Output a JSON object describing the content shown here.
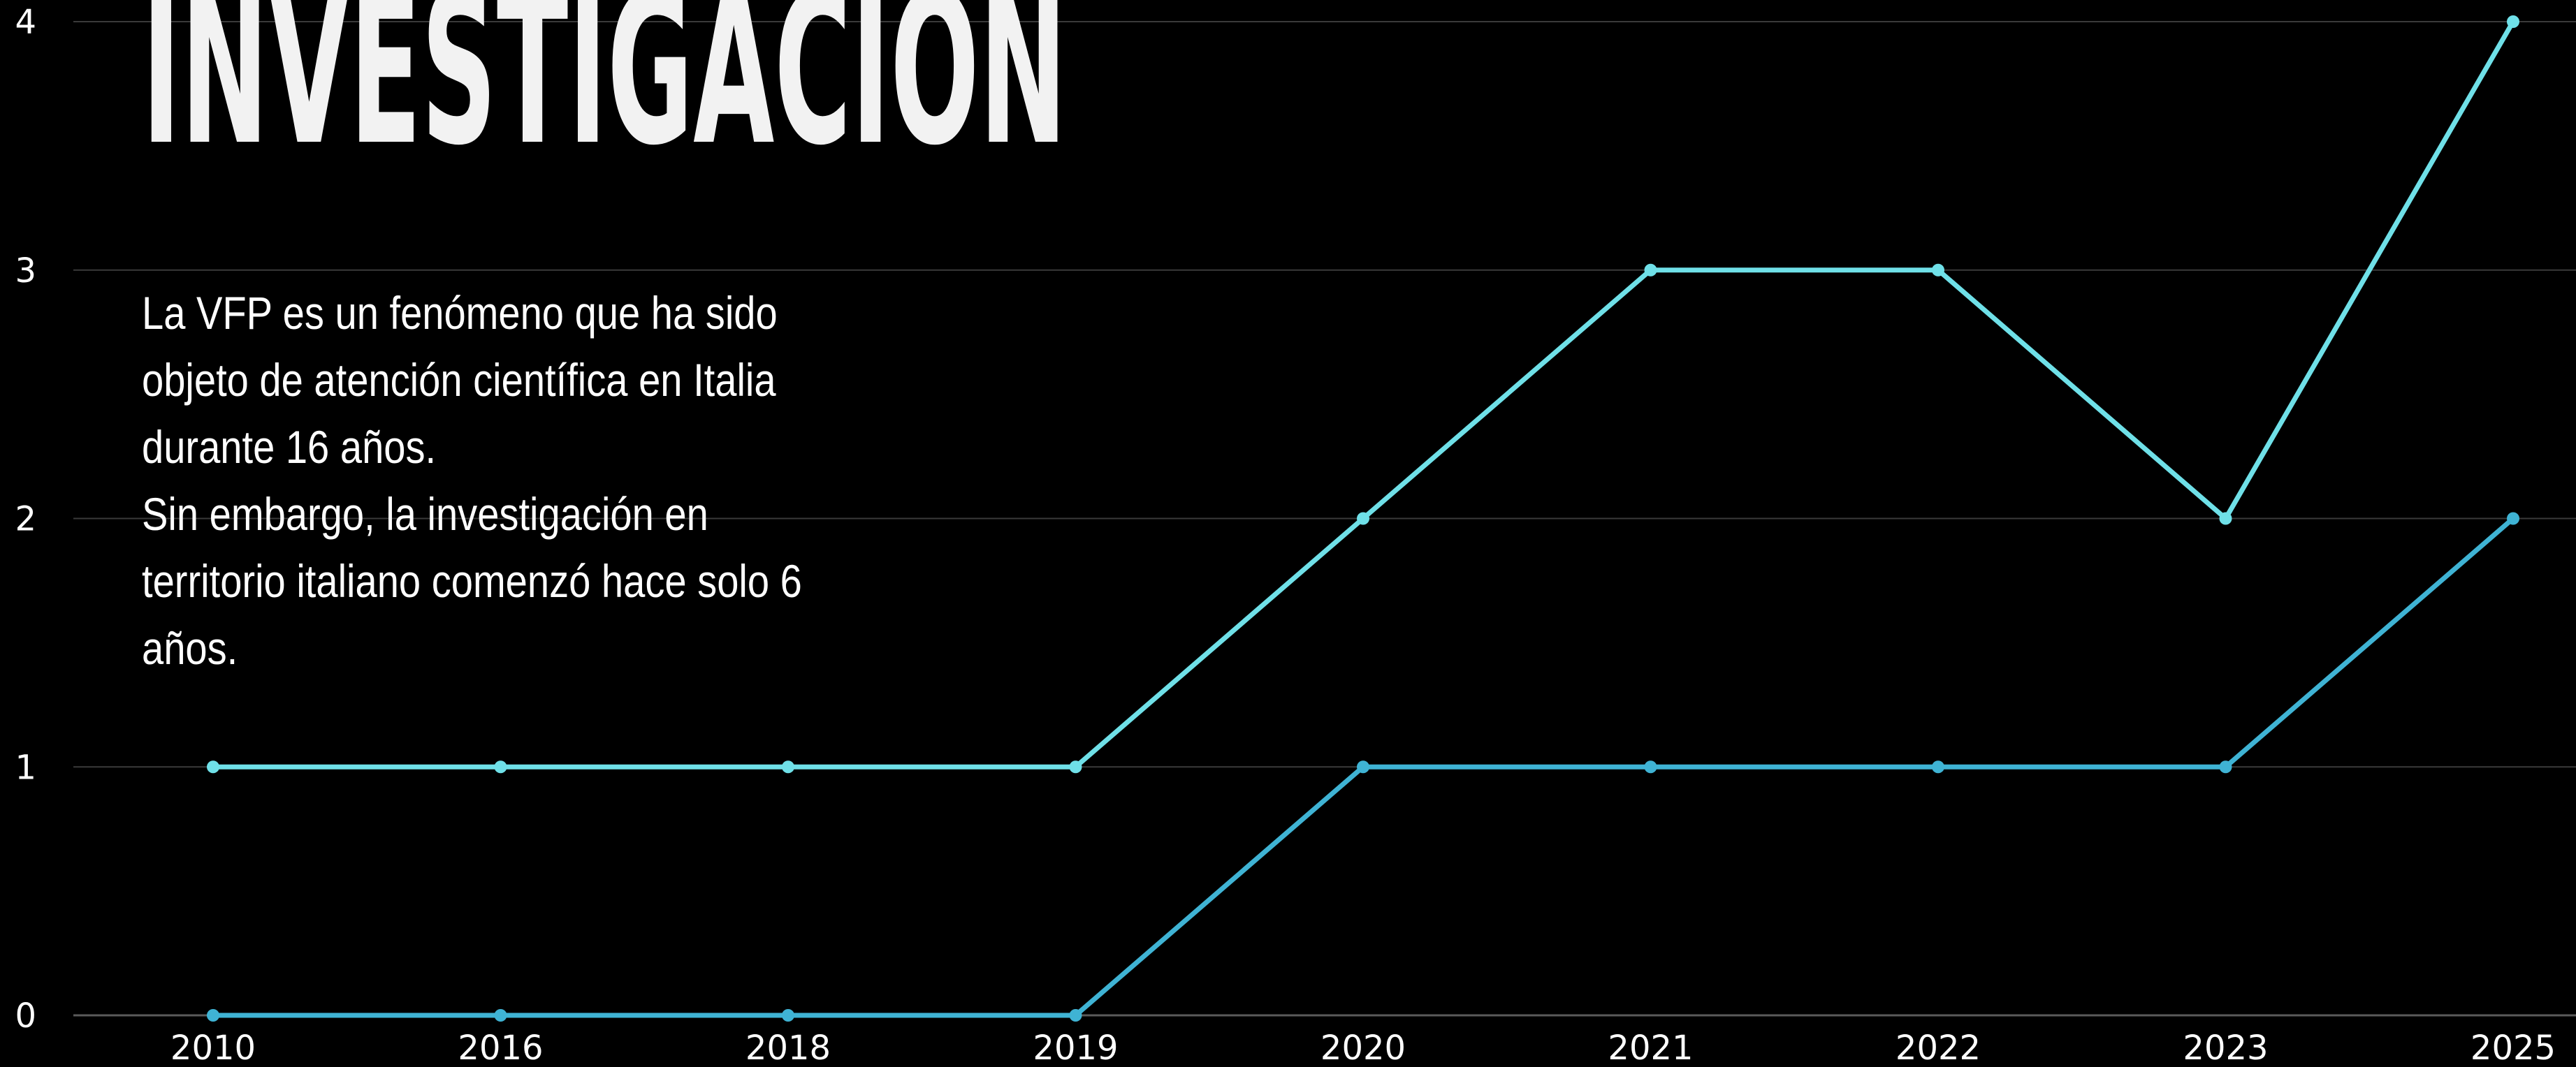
{
  "title": "INVESTIGACIÓN",
  "description": [
    "La VFP es un fenómeno que ha sido objeto de atención científica en Italia durante 16 años.",
    "Sin embargo, la investigación en territorio italiano comenzó hace solo 6 años."
  ],
  "chart_data": {
    "type": "line",
    "x": [
      "2010",
      "2016",
      "2018",
      "2019",
      "2020",
      "2021",
      "2022",
      "2023",
      "2025"
    ],
    "series": [
      {
        "values": [
          1,
          1,
          1,
          1,
          2,
          3,
          3,
          2,
          4
        ],
        "color": "#6fe0e8"
      },
      {
        "values": [
          0,
          0,
          0,
          0,
          1,
          1,
          1,
          1,
          2
        ],
        "color": "#3fb3d4"
      }
    ],
    "yticks": [
      "0",
      "1",
      "2",
      "3",
      "4"
    ],
    "ylim": [
      0,
      4
    ],
    "grid": true,
    "legend": false
  }
}
